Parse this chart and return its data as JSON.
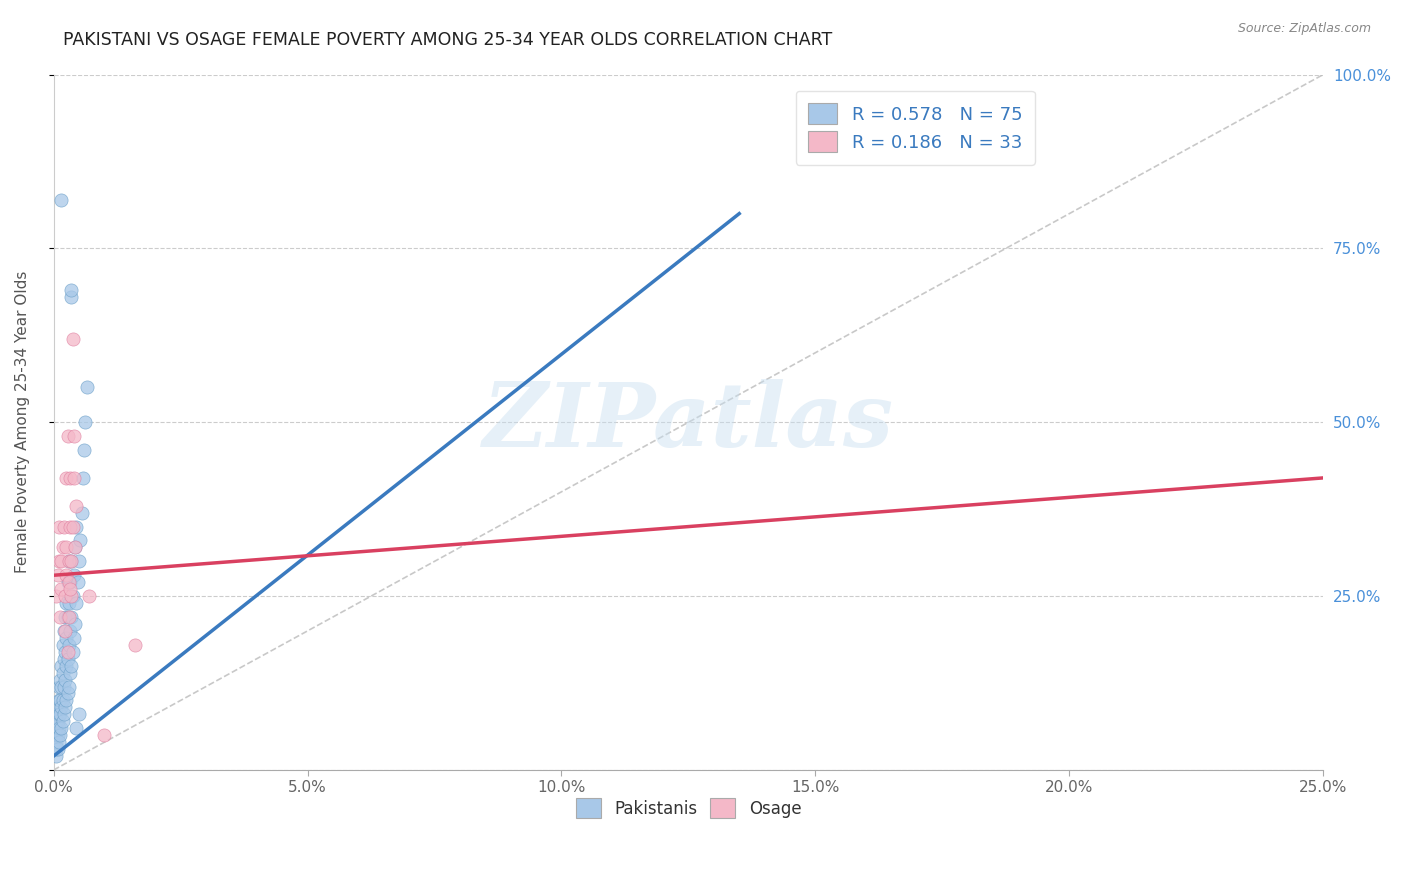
{
  "title": "PAKISTANI VS OSAGE FEMALE POVERTY AMONG 25-34 YEAR OLDS CORRELATION CHART",
  "source": "Source: ZipAtlas.com",
  "ylabel": "Female Poverty Among 25-34 Year Olds",
  "xlim": [
    0.0,
    0.25
  ],
  "ylim": [
    0.0,
    1.0
  ],
  "xtick_vals": [
    0.0,
    0.05,
    0.1,
    0.15,
    0.2,
    0.25
  ],
  "xtick_labels": [
    "0.0%",
    "5.0%",
    "10.0%",
    "15.0%",
    "20.0%",
    "25.0%"
  ],
  "ytick_vals": [
    0.0,
    0.25,
    0.5,
    0.75,
    1.0
  ],
  "ytick_labels_right": [
    "",
    "25.0%",
    "50.0%",
    "75.0%",
    "100.0%"
  ],
  "pakistani_color": "#a8c8e8",
  "pakistani_edge_color": "#6a9fc8",
  "osage_color": "#f4b8c8",
  "osage_edge_color": "#e080a0",
  "pakistani_line_color": "#3a7abf",
  "osage_line_color": "#d94060",
  "diagonal_color": "#bbbbbb",
  "right_tick_color": "#4a90d9",
  "watermark": "ZIPatlas",
  "blue_line": [
    [
      0.0,
      0.02
    ],
    [
      0.135,
      0.8
    ]
  ],
  "pink_line": [
    [
      0.0,
      0.28
    ],
    [
      0.25,
      0.42
    ]
  ],
  "diag_line": [
    [
      0.0,
      0.0
    ],
    [
      0.25,
      1.0
    ]
  ],
  "R1": 0.578,
  "N1": 75,
  "R2": 0.186,
  "N2": 33,
  "pakistani_points": [
    [
      0.0005,
      0.02
    ],
    [
      0.0005,
      0.03
    ],
    [
      0.0005,
      0.04
    ],
    [
      0.0005,
      0.05
    ],
    [
      0.0005,
      0.06
    ],
    [
      0.0005,
      0.07
    ],
    [
      0.0005,
      0.08
    ],
    [
      0.0005,
      0.09
    ],
    [
      0.0008,
      0.03
    ],
    [
      0.0008,
      0.05
    ],
    [
      0.0008,
      0.07
    ],
    [
      0.001,
      0.04
    ],
    [
      0.001,
      0.06
    ],
    [
      0.001,
      0.08
    ],
    [
      0.001,
      0.1
    ],
    [
      0.001,
      0.12
    ],
    [
      0.0012,
      0.05
    ],
    [
      0.0012,
      0.08
    ],
    [
      0.0012,
      0.1
    ],
    [
      0.0012,
      0.13
    ],
    [
      0.0015,
      0.06
    ],
    [
      0.0015,
      0.09
    ],
    [
      0.0015,
      0.12
    ],
    [
      0.0015,
      0.15
    ],
    [
      0.0018,
      0.07
    ],
    [
      0.0018,
      0.1
    ],
    [
      0.0018,
      0.14
    ],
    [
      0.0018,
      0.18
    ],
    [
      0.002,
      0.08
    ],
    [
      0.002,
      0.12
    ],
    [
      0.002,
      0.16
    ],
    [
      0.002,
      0.2
    ],
    [
      0.0022,
      0.09
    ],
    [
      0.0022,
      0.13
    ],
    [
      0.0022,
      0.17
    ],
    [
      0.0022,
      0.22
    ],
    [
      0.0025,
      0.1
    ],
    [
      0.0025,
      0.15
    ],
    [
      0.0025,
      0.19
    ],
    [
      0.0025,
      0.24
    ],
    [
      0.0028,
      0.11
    ],
    [
      0.0028,
      0.16
    ],
    [
      0.0028,
      0.22
    ],
    [
      0.0028,
      0.27
    ],
    [
      0.003,
      0.12
    ],
    [
      0.003,
      0.18
    ],
    [
      0.003,
      0.24
    ],
    [
      0.003,
      0.3
    ],
    [
      0.0033,
      0.14
    ],
    [
      0.0033,
      0.2
    ],
    [
      0.0033,
      0.27
    ],
    [
      0.0035,
      0.15
    ],
    [
      0.0035,
      0.22
    ],
    [
      0.0035,
      0.3
    ],
    [
      0.0038,
      0.17
    ],
    [
      0.0038,
      0.25
    ],
    [
      0.004,
      0.19
    ],
    [
      0.004,
      0.28
    ],
    [
      0.0042,
      0.21
    ],
    [
      0.0042,
      0.32
    ],
    [
      0.0045,
      0.24
    ],
    [
      0.0045,
      0.35
    ],
    [
      0.0048,
      0.27
    ],
    [
      0.005,
      0.3
    ],
    [
      0.0052,
      0.33
    ],
    [
      0.0055,
      0.37
    ],
    [
      0.0058,
      0.42
    ],
    [
      0.006,
      0.46
    ],
    [
      0.0062,
      0.5
    ],
    [
      0.0065,
      0.55
    ],
    [
      0.0035,
      0.68
    ],
    [
      0.0035,
      0.69
    ],
    [
      0.0015,
      0.82
    ],
    [
      0.0045,
      0.06
    ],
    [
      0.005,
      0.08
    ]
  ],
  "osage_points": [
    [
      0.0005,
      0.25
    ],
    [
      0.0008,
      0.28
    ],
    [
      0.001,
      0.3
    ],
    [
      0.001,
      0.35
    ],
    [
      0.0012,
      0.22
    ],
    [
      0.0015,
      0.26
    ],
    [
      0.0015,
      0.3
    ],
    [
      0.0018,
      0.32
    ],
    [
      0.002,
      0.35
    ],
    [
      0.0022,
      0.2
    ],
    [
      0.0022,
      0.25
    ],
    [
      0.0025,
      0.28
    ],
    [
      0.0025,
      0.32
    ],
    [
      0.0025,
      0.42
    ],
    [
      0.0028,
      0.48
    ],
    [
      0.003,
      0.22
    ],
    [
      0.003,
      0.27
    ],
    [
      0.003,
      0.3
    ],
    [
      0.0032,
      0.35
    ],
    [
      0.0032,
      0.42
    ],
    [
      0.0035,
      0.25
    ],
    [
      0.0035,
      0.3
    ],
    [
      0.0038,
      0.35
    ],
    [
      0.0038,
      0.62
    ],
    [
      0.004,
      0.42
    ],
    [
      0.004,
      0.48
    ],
    [
      0.0042,
      0.32
    ],
    [
      0.0045,
      0.38
    ],
    [
      0.0028,
      0.17
    ],
    [
      0.0032,
      0.26
    ],
    [
      0.007,
      0.25
    ],
    [
      0.01,
      0.05
    ],
    [
      0.016,
      0.18
    ]
  ]
}
